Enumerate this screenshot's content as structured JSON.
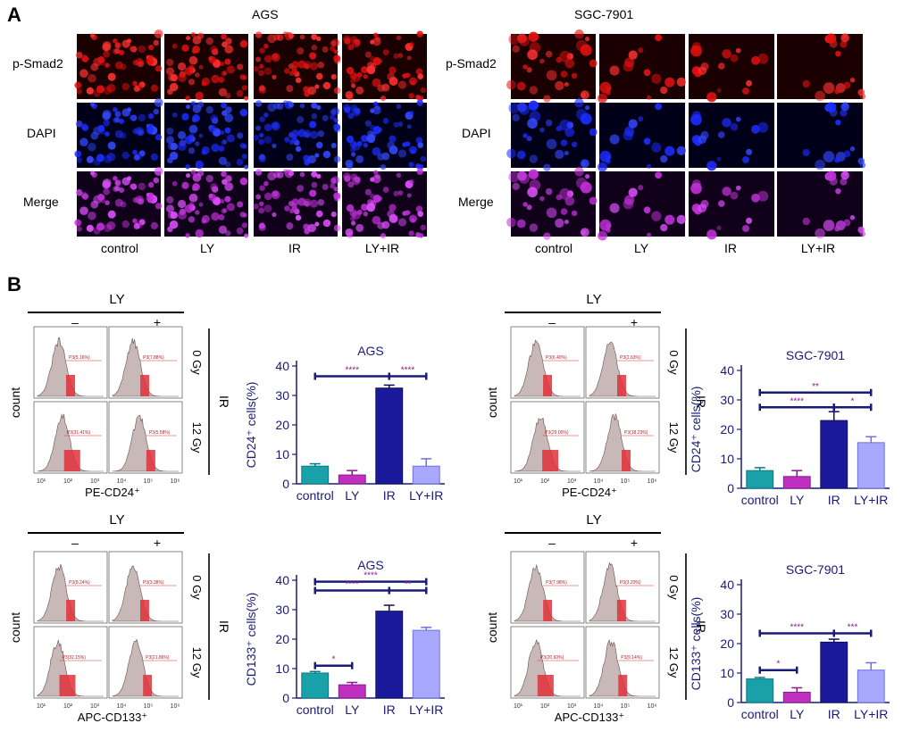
{
  "panel_a": {
    "letter": "A",
    "groups": [
      {
        "title": "AGS",
        "rows": [
          "p-Smad2",
          "DAPI",
          "Merge"
        ],
        "cols": [
          "control",
          "LY",
          "IR",
          "LY+IR"
        ]
      },
      {
        "title": "SGC-7901",
        "rows": [
          "p-Smad2",
          "DAPI",
          "Merge"
        ],
        "cols": [
          "control",
          "LY",
          "IR",
          "LY+IR"
        ]
      }
    ]
  },
  "panel_b": {
    "letter": "B",
    "flow": {
      "ly_label": "LY",
      "minus": "–",
      "plus": "+",
      "ir_label": "IR",
      "dose_0": "0 Gy",
      "dose_12": "12 Gy",
      "count_label": "count",
      "ticks": [
        "10¹",
        "10²",
        "10³",
        "10⁴",
        "10⁵",
        "10⁶"
      ],
      "xlabel_cd24": "PE-CD24⁺",
      "xlabel_cd133": "APC-CD133⁺",
      "gates": {
        "ags_cd24": [
          "P3(5.16%)",
          "P3(7.88%)",
          "P3(31.41%)",
          "P3(5.58%)"
        ],
        "sgc_cd24": [
          "P3(6.40%)",
          "P3(2.63%)",
          "P3(29.00%)",
          "P3(18.23%)"
        ],
        "ags_cd133": [
          "P3(8.24%)",
          "P3(3.38%)",
          "P3(32.15%)",
          "P3(21.86%)"
        ],
        "sgc_cd133": [
          "P3(7.98%)",
          "P3(3.20%)",
          "P3(20.60%)",
          "P3(9.14%)"
        ]
      }
    }
  },
  "chart_data": [
    {
      "type": "bar",
      "title": "AGS",
      "categories": [
        "control",
        "LY",
        "IR",
        "LY+IR"
      ],
      "values": [
        6,
        3,
        32.5,
        6
      ],
      "errors": [
        0.8,
        1.5,
        1,
        2.5
      ],
      "ylabel": "CD24⁺ cells(%)",
      "ylim": [
        0,
        40
      ],
      "yticks": [
        0,
        10,
        20,
        30,
        40
      ],
      "significance": [
        {
          "from": 0,
          "to": 2,
          "y": 36.5,
          "label": "****"
        },
        {
          "from": 2,
          "to": 3,
          "y": 36.5,
          "label": "****"
        }
      ]
    },
    {
      "type": "bar",
      "title": "SGC-7901",
      "categories": [
        "control",
        "LY",
        "IR",
        "LY+IR"
      ],
      "values": [
        6,
        4,
        23,
        15.5
      ],
      "errors": [
        1,
        2,
        3,
        2
      ],
      "ylabel": "CD24⁺ cells(%)",
      "ylim": [
        0,
        40
      ],
      "yticks": [
        0,
        10,
        20,
        30,
        40
      ],
      "significance": [
        {
          "from": 0,
          "to": 3,
          "y": 32.5,
          "label": "**"
        },
        {
          "from": 0,
          "to": 2,
          "y": 27.5,
          "label": "****"
        },
        {
          "from": 2,
          "to": 3,
          "y": 27.5,
          "label": "*"
        }
      ]
    },
    {
      "type": "bar",
      "title": "AGS",
      "categories": [
        "control",
        "LY",
        "IR",
        "LY+IR"
      ],
      "values": [
        8.5,
        4.5,
        29.5,
        23
      ],
      "errors": [
        0.5,
        0.8,
        2,
        1
      ],
      "ylabel": "CD133⁺ cells(%)",
      "ylim": [
        0,
        40
      ],
      "yticks": [
        0,
        10,
        20,
        30,
        40
      ],
      "significance": [
        {
          "from": 0,
          "to": 3,
          "y": 39.5,
          "label": "****"
        },
        {
          "from": 0,
          "to": 2,
          "y": 36.5,
          "label": "****"
        },
        {
          "from": 2,
          "to": 3,
          "y": 36.5,
          "label": "**"
        },
        {
          "from": 0,
          "to": 1,
          "y": 11,
          "label": "*"
        }
      ]
    },
    {
      "type": "bar",
      "title": "SGC-7901",
      "categories": [
        "control",
        "LY",
        "IR",
        "LY+IR"
      ],
      "values": [
        8,
        3.5,
        20.5,
        11
      ],
      "errors": [
        0.5,
        1.5,
        1,
        2.5
      ],
      "ylabel": "CD133⁺ cells(%)",
      "ylim": [
        0,
        40
      ],
      "yticks": [
        0,
        10,
        20,
        30,
        40
      ],
      "significance": [
        {
          "from": 0,
          "to": 2,
          "y": 23.5,
          "label": "****"
        },
        {
          "from": 2,
          "to": 3,
          "y": 23.5,
          "label": "***"
        },
        {
          "from": 0,
          "to": 1,
          "y": 11,
          "label": "*"
        }
      ]
    }
  ]
}
